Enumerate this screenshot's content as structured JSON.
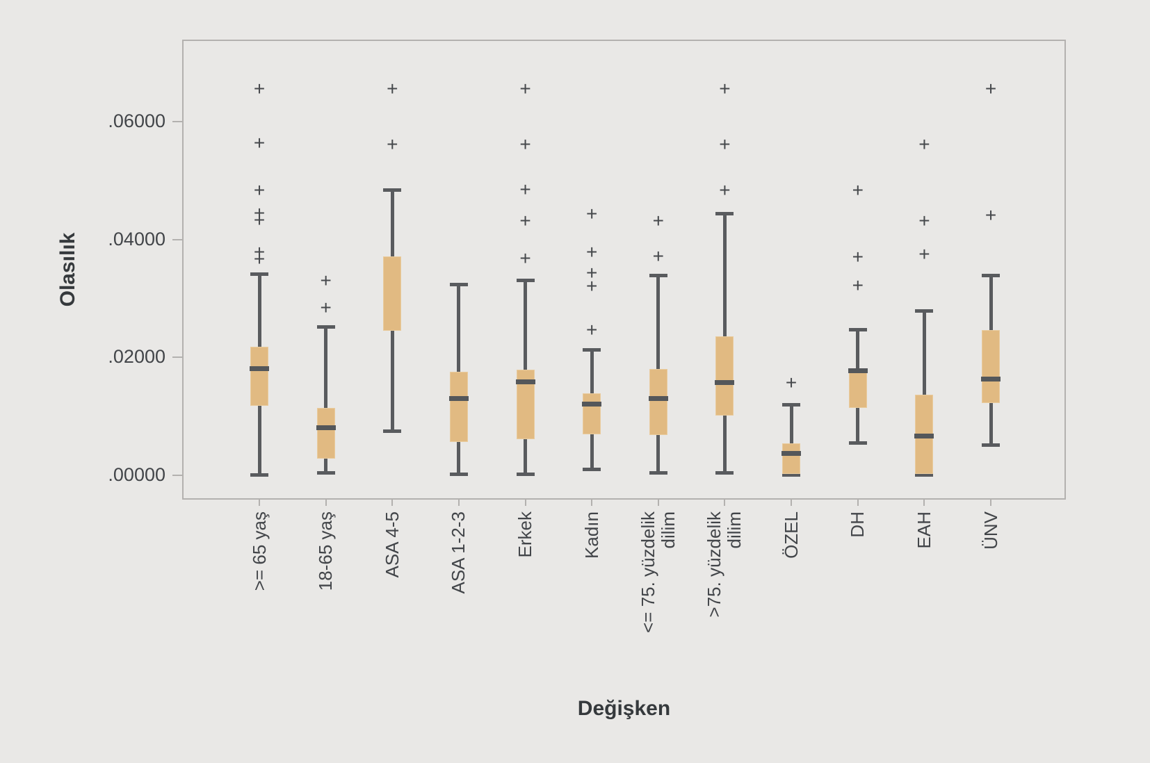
{
  "axes": {
    "y_title": "Olasılık",
    "x_title": "Değişken"
  },
  "chart_data": {
    "type": "boxplot",
    "title": "",
    "xlabel": "Değişken",
    "ylabel": "Olasılık",
    "ylim": [
      -0.0041,
      0.0739
    ],
    "grid": false,
    "legend": "none",
    "y_ticks": [
      {
        "value": 0.0,
        "label": ".00000"
      },
      {
        "value": 0.02,
        "label": ".02000"
      },
      {
        "value": 0.04,
        "label": ".04000"
      },
      {
        "value": 0.06,
        "label": ".06000"
      }
    ],
    "categories": [
      ">= 65 yaş",
      "18-65 yaş",
      "ASA 4-5",
      "ASA 1-2-3",
      "Erkek",
      "Kadın",
      "<= 75. yüzdelik\ndilim",
      ">75. yüzdelik\ndilim",
      "ÖZEL",
      "DH",
      "EAH",
      "ÜNV"
    ],
    "boxes": [
      {
        "label": ">= 65 yaş",
        "whisker_low": 0.0,
        "q1": 0.0118,
        "median": 0.0181,
        "q3": 0.0218,
        "whisker_high": 0.0342,
        "outliers": [
          0.0655,
          0.0563,
          0.0483,
          0.0445,
          0.0433,
          0.0379,
          0.0367
        ]
      },
      {
        "label": "18-65 yaş",
        "whisker_low": 0.0004,
        "q1": 0.0028,
        "median": 0.0081,
        "q3": 0.0115,
        "whisker_high": 0.0252,
        "outliers": [
          0.033,
          0.0284
        ]
      },
      {
        "label": "ASA 4-5",
        "whisker_low": 0.0075,
        "q1": 0.0245,
        "median": null,
        "q3": 0.0371,
        "whisker_high": 0.0484,
        "outliers": [
          0.0655,
          0.0561
        ]
      },
      {
        "label": "ASA 1-2-3",
        "whisker_low": 0.0002,
        "q1": 0.0057,
        "median": 0.0131,
        "q3": 0.0176,
        "whisker_high": 0.0324,
        "outliers": []
      },
      {
        "label": "Erkek",
        "whisker_low": 0.0002,
        "q1": 0.0062,
        "median": 0.0159,
        "q3": 0.0179,
        "whisker_high": 0.0331,
        "outliers": [
          0.0655,
          0.0561,
          0.0484,
          0.0431,
          0.0368
        ]
      },
      {
        "label": "Kadın",
        "whisker_low": 0.001,
        "q1": 0.007,
        "median": 0.0121,
        "q3": 0.0139,
        "whisker_high": 0.0214,
        "outliers": [
          0.0443,
          0.0379,
          0.0343,
          0.0321,
          0.0247
        ]
      },
      {
        "label": "<= 75. yüzdelik\ndilim",
        "whisker_low": 0.0004,
        "q1": 0.0068,
        "median": 0.013,
        "q3": 0.018,
        "whisker_high": 0.034,
        "outliers": [
          0.0431,
          0.0371
        ]
      },
      {
        "label": ">75. yüzdelik\ndilim",
        "whisker_low": 0.0004,
        "q1": 0.0101,
        "median": 0.0157,
        "q3": 0.0236,
        "whisker_high": 0.0444,
        "outliers": [
          0.0655,
          0.0561,
          0.0483
        ]
      },
      {
        "label": "ÖZEL",
        "whisker_low": 0.0,
        "q1": 0.0002,
        "median": 0.0037,
        "q3": 0.0055,
        "whisker_high": 0.012,
        "outliers": [
          0.0157
        ]
      },
      {
        "label": "DH",
        "whisker_low": 0.0055,
        "q1": 0.0115,
        "median": 0.0178,
        "q3": 0.0181,
        "whisker_high": 0.0248,
        "outliers": [
          0.0483,
          0.037,
          0.0322
        ]
      },
      {
        "label": "EAH",
        "whisker_low": 0.0,
        "q1": 0.0002,
        "median": 0.0067,
        "q3": 0.0137,
        "whisker_high": 0.0279,
        "outliers": [
          0.0561,
          0.0431,
          0.0375
        ]
      },
      {
        "label": "ÜNV",
        "whisker_low": 0.0051,
        "q1": 0.0123,
        "median": 0.0164,
        "q3": 0.0247,
        "whisker_high": 0.034,
        "outliers": [
          0.0655,
          0.0441
        ]
      }
    ],
    "colors": {
      "box_fill": "#e1ba82",
      "box_edge": "#e9cb9d",
      "line": "#595b5e",
      "median": "#54575a",
      "outlier_marker": "+",
      "background": "#e9e8e6",
      "frame": "#b3b1af",
      "text": "#424549",
      "title_text": "#35393c"
    }
  }
}
